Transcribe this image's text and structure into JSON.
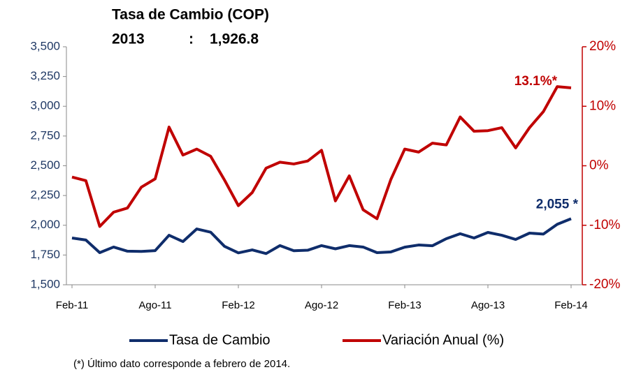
{
  "chart_data": {
    "type": "line",
    "title": "Tasa de Cambio (COP)",
    "subtitle": [
      "2013",
      ":",
      "1,926.8"
    ],
    "categories": [
      "Feb-11",
      null,
      null,
      null,
      null,
      null,
      "Ago-11",
      null,
      null,
      null,
      null,
      null,
      "Feb-12",
      null,
      null,
      null,
      null,
      null,
      "Ago-12",
      null,
      null,
      null,
      null,
      null,
      "Feb-13",
      null,
      null,
      null,
      null,
      null,
      "Ago-13",
      null,
      null,
      null,
      null,
      null,
      "Feb-14"
    ],
    "series": [
      {
        "name": "Tasa de Cambio",
        "color": "#0f2d6b",
        "axis": "y",
        "values": [
          1893,
          1876,
          1770,
          1817,
          1782,
          1780,
          1787,
          1916,
          1863,
          1969,
          1942,
          1823,
          1768,
          1793,
          1762,
          1829,
          1786,
          1790,
          1829,
          1802,
          1829,
          1817,
          1770,
          1776,
          1816,
          1834,
          1828,
          1887,
          1929,
          1893,
          1940,
          1916,
          1881,
          1934,
          1926,
          2008,
          2055
        ]
      },
      {
        "name": "Variación Anual (%)",
        "color": "#c00000",
        "axis": "y2",
        "values": [
          -1.9,
          -2.5,
          -10.2,
          -7.8,
          -7.1,
          -3.6,
          -2.2,
          6.5,
          1.8,
          2.8,
          1.6,
          -2.4,
          -6.7,
          -4.5,
          -0.4,
          0.6,
          0.3,
          0.8,
          2.6,
          -5.9,
          -1.7,
          -7.4,
          -8.9,
          -2.3,
          2.8,
          2.3,
          3.8,
          3.5,
          8.2,
          5.8,
          5.9,
          6.4,
          3.0,
          6.4,
          9.1,
          13.3,
          13.1
        ]
      }
    ],
    "ylim": [
      1500,
      3500
    ],
    "yticks": [
      {
        "value": 1500,
        "label": "1,500"
      },
      {
        "value": 1750,
        "label": "1,750"
      },
      {
        "value": 2000,
        "label": "2,000"
      },
      {
        "value": 2250,
        "label": "2,250"
      },
      {
        "value": 2500,
        "label": "2,500"
      },
      {
        "value": 2750,
        "label": "2,750"
      },
      {
        "value": 3000,
        "label": "3,000"
      },
      {
        "value": 3250,
        "label": "3,250"
      },
      {
        "value": 3500,
        "label": "3,500"
      }
    ],
    "y2lim": [
      -20,
      20
    ],
    "y2ticks": [
      {
        "value": -20,
        "label": "-20%"
      },
      {
        "value": -10,
        "label": "-10%"
      },
      {
        "value": 0,
        "label": "0%"
      },
      {
        "value": 10,
        "label": "10%"
      },
      {
        "value": 20,
        "label": "20%"
      }
    ],
    "annotations": [
      "2,055 *",
      "13.1%*"
    ],
    "footnote": "(*) Último dato corresponde a febrero de 2014.",
    "grid": false,
    "legend": "bottom"
  }
}
